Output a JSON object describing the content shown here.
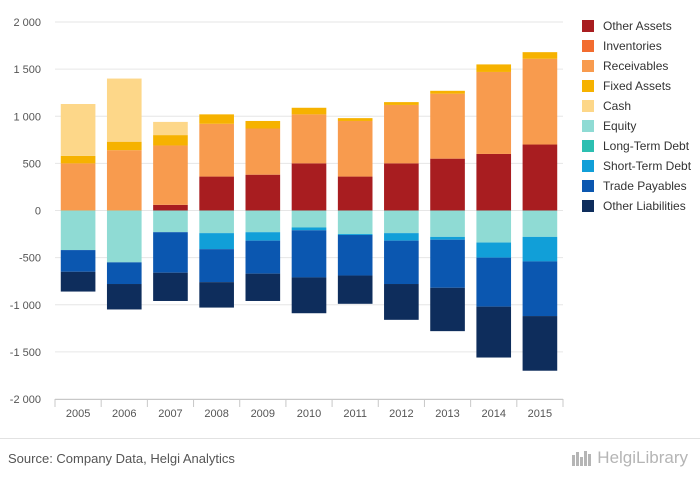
{
  "chart_data": {
    "type": "bar",
    "stacked": true,
    "categories": [
      "2005",
      "2006",
      "2007",
      "2008",
      "2009",
      "2010",
      "2011",
      "2012",
      "2013",
      "2014",
      "2015"
    ],
    "ylim": [
      -2000,
      2000
    ],
    "yticks": [
      -2000,
      -1500,
      -1000,
      -500,
      0,
      500,
      1000,
      1500,
      2000
    ],
    "ytick_labels": [
      "-2 000",
      "-1 500",
      "-1 000",
      "-500",
      "0",
      "500",
      "1 000",
      "1 500",
      "2 000"
    ],
    "grid": true,
    "legend_position": "right",
    "assets": [
      {
        "name": "Other Assets",
        "color": "#a81d20",
        "values": [
          0,
          0,
          60,
          360,
          380,
          500,
          360,
          500,
          550,
          600,
          700
        ]
      },
      {
        "name": "Inventories",
        "color": "#f26c2f",
        "values": [
          0,
          0,
          0,
          0,
          0,
          0,
          0,
          0,
          0,
          0,
          0
        ]
      },
      {
        "name": "Receivables",
        "color": "#f89b4e",
        "values": [
          500,
          640,
          630,
          560,
          490,
          520,
          590,
          620,
          690,
          870,
          910
        ]
      },
      {
        "name": "Fixed Assets",
        "color": "#f6b200",
        "values": [
          80,
          90,
          110,
          100,
          80,
          70,
          30,
          30,
          30,
          80,
          70
        ]
      },
      {
        "name": "Cash",
        "color": "#fdd789",
        "values": [
          550,
          670,
          140,
          0,
          0,
          0,
          0,
          0,
          0,
          0,
          0
        ]
      }
    ],
    "liabilities": [
      {
        "name": "Equity",
        "color": "#8fdbd4",
        "values": [
          420,
          550,
          230,
          240,
          230,
          180,
          250,
          240,
          280,
          340,
          280
        ]
      },
      {
        "name": "Long-Term Debt",
        "color": "#2cbfb1",
        "values": [
          0,
          0,
          0,
          0,
          0,
          0,
          0,
          0,
          0,
          0,
          0
        ]
      },
      {
        "name": "Short-Term Debt",
        "color": "#119fd8",
        "values": [
          0,
          0,
          0,
          170,
          90,
          30,
          10,
          80,
          30,
          160,
          260
        ]
      },
      {
        "name": "Trade Payables",
        "color": "#0b57b0",
        "values": [
          230,
          230,
          430,
          350,
          350,
          500,
          430,
          460,
          510,
          520,
          580
        ]
      },
      {
        "name": "Other Liabilities",
        "color": "#0e2d5c",
        "values": [
          210,
          270,
          300,
          270,
          290,
          380,
          300,
          380,
          460,
          540,
          580
        ]
      }
    ]
  },
  "legend": [
    {
      "label": "Other Assets",
      "color": "#a81d20"
    },
    {
      "label": "Inventories",
      "color": "#f26c2f"
    },
    {
      "label": "Receivables",
      "color": "#f89b4e"
    },
    {
      "label": "Fixed Assets",
      "color": "#f6b200"
    },
    {
      "label": "Cash",
      "color": "#fdd789"
    },
    {
      "label": "Equity",
      "color": "#8fdbd4"
    },
    {
      "label": "Long-Term Debt",
      "color": "#2cbfb1"
    },
    {
      "label": "Short-Term Debt",
      "color": "#119fd8"
    },
    {
      "label": "Trade Payables",
      "color": "#0b57b0"
    },
    {
      "label": "Other Liabilities",
      "color": "#0e2d5c"
    }
  ],
  "footer": {
    "source": "Source: Company Data, Helgi Analytics",
    "brand": "HelgiLibrary"
  }
}
